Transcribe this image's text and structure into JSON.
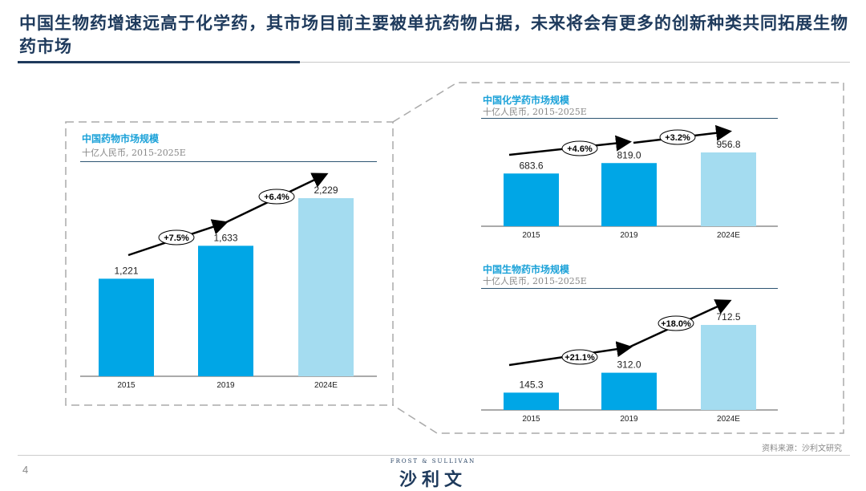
{
  "title": "中国生物药增速远高于化学药，其市场目前主要被单抗药物占据，未来将会有更多的创新种类共同拓展生物药市场",
  "page_number": "4",
  "source": "资料来源：沙利文研究",
  "logo": {
    "en": "FROST & SULLIVAN",
    "cn": "沙利文"
  },
  "colors": {
    "bar": "#00a6e6",
    "bar_forecast": "#a4dcf0",
    "title": "#1e3a5c",
    "chart_title": "#1aa1d8"
  },
  "chart_data": [
    {
      "type": "bar",
      "title": "中国药物市场规模",
      "subtitle": "十亿人民币, 2015-2025E",
      "categories": [
        "2015",
        "2019",
        "2024E"
      ],
      "values": [
        1221,
        1633,
        2229
      ],
      "labels": [
        "1,221",
        "1,633",
        "2,229"
      ],
      "cagr": [
        "+7.5%",
        "+6.4%"
      ]
    },
    {
      "type": "bar",
      "title": "中国化学药市场规模",
      "subtitle": "十亿人民币, 2015-2025E",
      "categories": [
        "2015",
        "2019",
        "2024E"
      ],
      "values": [
        683.6,
        819.0,
        956.8
      ],
      "labels": [
        "683.6",
        "819.0",
        "956.8"
      ],
      "cagr": [
        "+4.6%",
        "+3.2%"
      ]
    },
    {
      "type": "bar",
      "title": "中国生物药市场规模",
      "subtitle": "十亿人民币, 2015-2025E",
      "categories": [
        "2015",
        "2019",
        "2024E"
      ],
      "values": [
        145.3,
        312.0,
        712.5
      ],
      "labels": [
        "145.3",
        "312.0",
        "712.5"
      ],
      "cagr": [
        "+21.1%",
        "+18.0%"
      ]
    }
  ]
}
